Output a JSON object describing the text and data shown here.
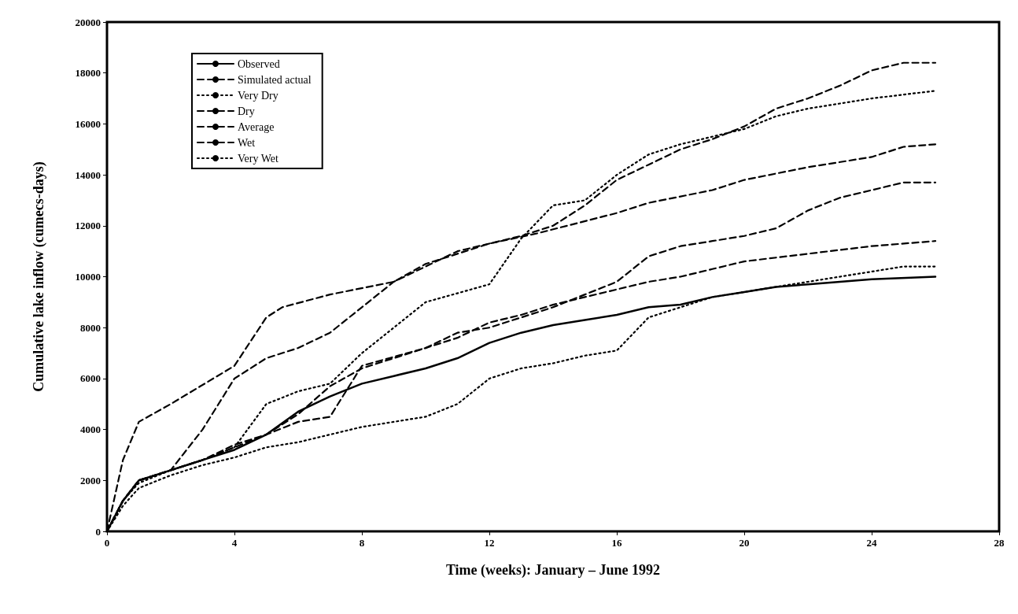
{
  "chart_data": {
    "type": "line",
    "xlabel": "Time (weeks): January – June 1992",
    "ylabel": "Cumulative lake inflow (cumecs-days)",
    "xlim": [
      0,
      28
    ],
    "xticks": [
      0,
      4,
      8,
      12,
      16,
      20,
      24,
      28
    ],
    "ylim": [
      0,
      20000
    ],
    "yticks": [
      0,
      2000,
      4000,
      6000,
      8000,
      10000,
      12000,
      14000,
      16000,
      18000,
      20000
    ],
    "grid": false,
    "legend": "top left",
    "marker": "none",
    "series": [
      {
        "name": "Observed",
        "color": "#000000",
        "line_style": "solid",
        "x": [
          0,
          0.5,
          1,
          2,
          3,
          4,
          5,
          6,
          7,
          8,
          9,
          10,
          11,
          12,
          13,
          14,
          15,
          16,
          17,
          18,
          19,
          20,
          21,
          22,
          23,
          24,
          26
        ],
        "values": [
          0,
          1200,
          2000,
          2400,
          2800,
          3200,
          3800,
          4700,
          5300,
          5800,
          6100,
          6400,
          6800,
          7400,
          7800,
          8100,
          8300,
          8500,
          8800,
          8900,
          9200,
          9400,
          9600,
          9700,
          9800,
          9900,
          10000
        ]
      },
      {
        "name": "Simulated actual",
        "color": "#000000",
        "line_style": "dashed",
        "x": [
          0,
          0.5,
          1,
          2,
          3,
          4,
          5,
          6,
          7,
          8,
          9,
          10,
          11,
          12,
          13,
          14,
          15,
          16,
          17,
          18,
          19,
          20,
          22,
          24,
          26
        ],
        "values": [
          0,
          1200,
          2000,
          2400,
          2800,
          3300,
          3800,
          4600,
          5700,
          6400,
          6800,
          7200,
          7600,
          8200,
          8500,
          8900,
          9200,
          9500,
          9800,
          10000,
          10300,
          10600,
          10900,
          11200,
          11400
        ]
      },
      {
        "name": "Very Dry",
        "color": "#000000",
        "line_style": "dotted",
        "x": [
          0,
          0.5,
          1,
          2,
          3,
          4,
          5,
          6,
          7,
          8,
          9,
          10,
          11,
          12,
          13,
          14,
          15,
          16,
          17,
          18,
          19,
          20,
          21,
          22,
          24,
          25,
          26
        ],
        "values": [
          0,
          1000,
          1700,
          2200,
          2600,
          2900,
          3300,
          3500,
          3800,
          4100,
          4300,
          4500,
          5000,
          6000,
          6400,
          6600,
          6900,
          7100,
          8400,
          8800,
          9200,
          9400,
          9600,
          9800,
          10200,
          10400,
          10400
        ]
      },
      {
        "name": "Dry",
        "color": "#000000",
        "line_style": "dashed",
        "x": [
          0,
          0.5,
          1,
          2,
          3,
          4,
          5,
          6,
          7,
          8,
          10,
          11,
          12,
          13,
          14,
          15,
          16,
          17,
          18,
          19,
          20,
          21,
          22,
          23,
          24,
          25,
          26
        ],
        "values": [
          0,
          1200,
          2000,
          2400,
          2800,
          3400,
          3800,
          4300,
          4500,
          6500,
          7200,
          7800,
          8000,
          8400,
          8800,
          9300,
          9800,
          10800,
          11200,
          11400,
          11600,
          11900,
          12600,
          13100,
          13400,
          13700,
          13700
        ]
      },
      {
        "name": "Average",
        "color": "#000000",
        "line_style": "dashed",
        "x": [
          0,
          0.5,
          1,
          2,
          4,
          5,
          5.5,
          7,
          9,
          10,
          12,
          13.5,
          16,
          17,
          19,
          20,
          22,
          24,
          25,
          26
        ],
        "values": [
          0,
          2800,
          4300,
          5000,
          6500,
          8400,
          8800,
          9300,
          9800,
          10500,
          11300,
          11700,
          12500,
          12900,
          13400,
          13800,
          14300,
          14700,
          15100,
          15200
        ]
      },
      {
        "name": "Wet",
        "color": "#000000",
        "line_style": "dashed",
        "x": [
          0,
          0.5,
          1,
          2,
          3,
          4,
          5,
          6,
          7,
          8,
          9,
          10,
          11,
          12,
          13,
          14,
          15,
          16,
          17,
          18,
          19,
          20,
          21,
          22,
          23,
          24,
          25,
          26
        ],
        "values": [
          0,
          1200,
          2000,
          2400,
          4000,
          6000,
          6800,
          7200,
          7800,
          8800,
          9800,
          10400,
          11000,
          11300,
          11600,
          12000,
          12800,
          13800,
          14400,
          15000,
          15400,
          15900,
          16600,
          17000,
          17500,
          18100,
          18400,
          18400
        ]
      },
      {
        "name": "Very Wet",
        "color": "#000000",
        "line_style": "dotted",
        "x": [
          0,
          0.5,
          1,
          2,
          3,
          4,
          5,
          6,
          7,
          8,
          9,
          10,
          12,
          13,
          14,
          15,
          16,
          17,
          18,
          20,
          21,
          22,
          24,
          26
        ],
        "values": [
          0,
          1200,
          1900,
          2400,
          2800,
          3300,
          5000,
          5500,
          5800,
          7000,
          8000,
          9000,
          9700,
          11500,
          12800,
          13000,
          14000,
          14800,
          15200,
          15800,
          16300,
          16600,
          17000,
          17300
        ]
      }
    ]
  }
}
